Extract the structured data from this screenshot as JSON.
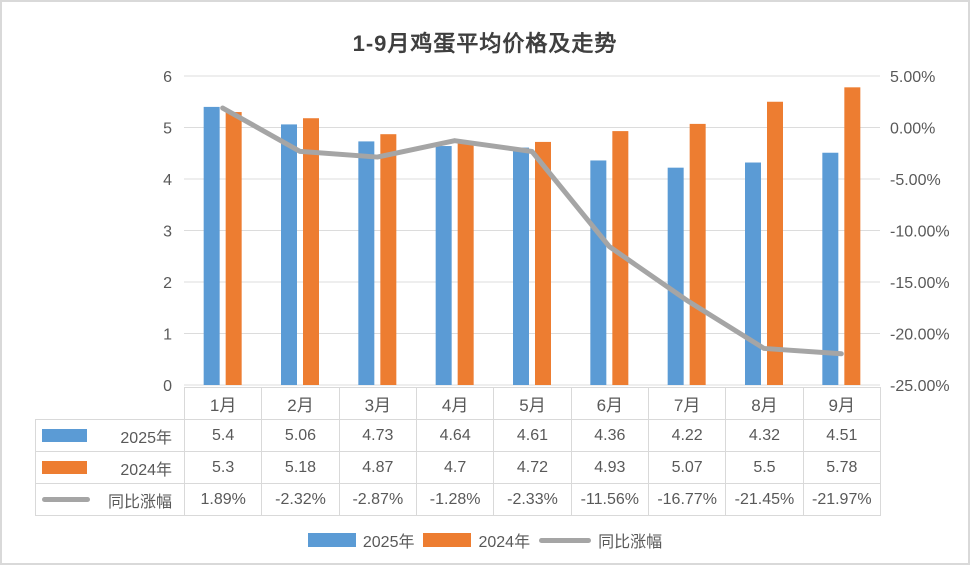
{
  "page": {
    "background": "#ffffff",
    "frame_border": "#d9d9d9"
  },
  "chart_data": {
    "type": "bar",
    "combo": "clustered-bar + line (secondary axis)",
    "title": "1-9月鸡蛋平均价格及走势",
    "categories": [
      "1月",
      "2月",
      "3月",
      "4月",
      "5月",
      "6月",
      "7月",
      "8月",
      "9月"
    ],
    "series": [
      {
        "name": "2025年",
        "type": "bar",
        "axis": "left",
        "color": "#5B9BD5",
        "values": [
          5.4,
          5.06,
          4.73,
          4.64,
          4.61,
          4.36,
          4.22,
          4.32,
          4.51
        ],
        "display": [
          "5.4",
          "5.06",
          "4.73",
          "4.64",
          "4.61",
          "4.36",
          "4.22",
          "4.32",
          "4.51"
        ]
      },
      {
        "name": "2024年",
        "type": "bar",
        "axis": "left",
        "color": "#ED7D31",
        "values": [
          5.3,
          5.18,
          4.87,
          4.7,
          4.72,
          4.93,
          5.07,
          5.5,
          5.78
        ],
        "display": [
          "5.3",
          "5.18",
          "4.87",
          "4.7",
          "4.72",
          "4.93",
          "5.07",
          "5.5",
          "5.78"
        ]
      },
      {
        "name": "同比涨幅",
        "type": "line",
        "axis": "right",
        "color": "#A5A5A5",
        "values": [
          1.89,
          -2.32,
          -2.87,
          -1.28,
          -2.33,
          -11.56,
          -16.77,
          -21.45,
          -21.97
        ],
        "display": [
          "1.89%",
          "-2.32%",
          "-2.87%",
          "-1.28%",
          "-2.33%",
          "-11.56%",
          "-16.77%",
          "-21.45%",
          "-21.97%"
        ]
      }
    ],
    "left_axis": {
      "min": 0,
      "max": 6,
      "ticks": [
        "6",
        "5",
        "4",
        "3",
        "2",
        "1",
        "0"
      ]
    },
    "right_axis": {
      "min": -25,
      "max": 5,
      "ticks": [
        "5.00%",
        "0.00%",
        "-5.00%",
        "-10.00%",
        "-15.00%",
        "-20.00%",
        "-25.00%"
      ]
    },
    "legend": {
      "position": "bottom",
      "entries": [
        "2025年",
        "2024年",
        "同比涨幅"
      ]
    },
    "grid": true,
    "data_table_shown": true,
    "colors": {
      "text": "#595959",
      "title": "#3f3f3f",
      "grid": "#dcdcdc",
      "table_border": "#d9d9d9"
    }
  }
}
